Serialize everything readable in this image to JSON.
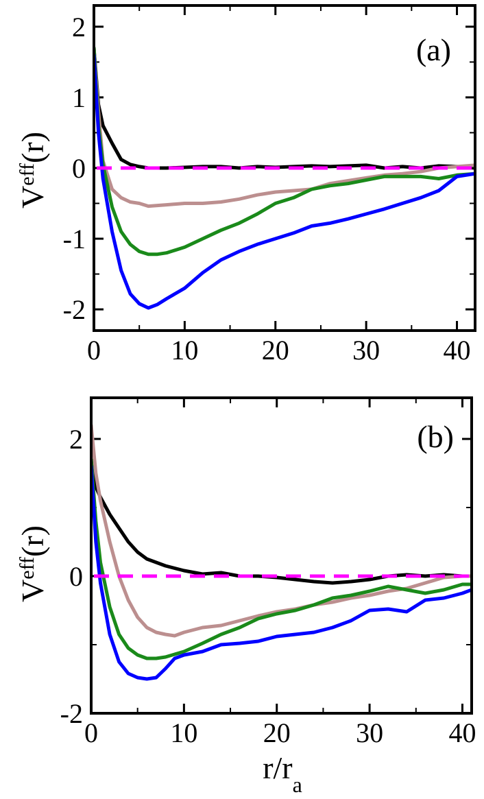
{
  "chart_data": [
    {
      "type": "line",
      "panel_label": "(a)",
      "ylabel_main": "V",
      "ylabel_sup": "eff",
      "ylabel_arg": "(r)",
      "xlim": [
        0,
        42
      ],
      "ylim": [
        -2.3,
        2.3
      ],
      "xticks": [
        0,
        10,
        20,
        30,
        40
      ],
      "xtick_labels": [
        "0",
        "10",
        "20",
        "30",
        "40"
      ],
      "yticks": [
        2,
        1,
        0,
        -1,
        -2
      ],
      "ytick_labels": [
        "2",
        "1",
        "0",
        "-1",
        "-2"
      ],
      "reference_line": {
        "y": 0,
        "color": "#ff00ff",
        "style": "dashed"
      },
      "series": [
        {
          "name": "black",
          "color": "#000000",
          "x": [
            0,
            0.5,
            1,
            2,
            3,
            4,
            5,
            6,
            8,
            10,
            12,
            14,
            16,
            18,
            20,
            22,
            24,
            26,
            28,
            30,
            32,
            34,
            36,
            38,
            40,
            42
          ],
          "y": [
            1.7,
            0.9,
            0.6,
            0.35,
            0.12,
            0.05,
            0.02,
            0.0,
            0.0,
            0.01,
            0.02,
            0.02,
            0.0,
            0.02,
            0.01,
            0.02,
            0.03,
            0.02,
            0.03,
            0.04,
            0.0,
            0.02,
            0.0,
            0.03,
            0.02,
            0.0
          ]
        },
        {
          "name": "rosybrown",
          "color": "#bc8f8f",
          "x": [
            0,
            0.5,
            1,
            2,
            3,
            4,
            5,
            6,
            7,
            8,
            10,
            12,
            14,
            16,
            18,
            20,
            22,
            24,
            26,
            28,
            30,
            32,
            34,
            36,
            38,
            40,
            42
          ],
          "y": [
            1.7,
            0.8,
            0.1,
            -0.3,
            -0.42,
            -0.48,
            -0.5,
            -0.54,
            -0.53,
            -0.52,
            -0.5,
            -0.5,
            -0.48,
            -0.44,
            -0.38,
            -0.34,
            -0.32,
            -0.3,
            -0.22,
            -0.18,
            -0.14,
            -0.1,
            -0.08,
            -0.05,
            0.0,
            0.02,
            0.04
          ]
        },
        {
          "name": "green",
          "color": "#1a8a1a",
          "x": [
            0,
            0.5,
            1,
            2,
            3,
            4,
            5,
            6,
            7,
            8,
            10,
            12,
            14,
            16,
            18,
            20,
            22,
            24,
            26,
            28,
            30,
            32,
            34,
            36,
            38,
            40,
            42
          ],
          "y": [
            1.7,
            0.6,
            0.05,
            -0.55,
            -0.9,
            -1.08,
            -1.18,
            -1.22,
            -1.22,
            -1.2,
            -1.12,
            -1.0,
            -0.88,
            -0.78,
            -0.65,
            -0.5,
            -0.42,
            -0.3,
            -0.25,
            -0.22,
            -0.17,
            -0.12,
            -0.12,
            -0.12,
            -0.15,
            -0.1,
            -0.08
          ]
        },
        {
          "name": "blue",
          "color": "#0000ff",
          "x": [
            0,
            0.5,
            1,
            2,
            3,
            4,
            5,
            6,
            7,
            8,
            10,
            12,
            14,
            16,
            18,
            20,
            22,
            24,
            26,
            28,
            30,
            32,
            34,
            36,
            38,
            40,
            42
          ],
          "y": [
            1.6,
            0.5,
            -0.15,
            -0.9,
            -1.45,
            -1.78,
            -1.92,
            -1.98,
            -1.93,
            -1.85,
            -1.7,
            -1.48,
            -1.3,
            -1.18,
            -1.08,
            -1.0,
            -0.92,
            -0.82,
            -0.78,
            -0.72,
            -0.65,
            -0.58,
            -0.5,
            -0.42,
            -0.32,
            -0.12,
            -0.08
          ]
        }
      ]
    },
    {
      "type": "line",
      "panel_label": "(b)",
      "ylabel_main": "V",
      "ylabel_sup": "eff",
      "ylabel_arg": "(r)",
      "xlabel_main": "r/r",
      "xlabel_sub": "a",
      "xlim": [
        0,
        41
      ],
      "ylim": [
        -2,
        2.6
      ],
      "xticks": [
        0,
        10,
        20,
        30,
        40
      ],
      "xtick_labels": [
        "0",
        "10",
        "20",
        "30",
        "40"
      ],
      "yticks": [
        2,
        0,
        -2
      ],
      "ytick_labels": [
        "2",
        "0",
        "-2"
      ],
      "reference_line": {
        "y": 0,
        "color": "#ff00ff",
        "style": "dashed"
      },
      "series": [
        {
          "name": "black",
          "color": "#000000",
          "x": [
            0,
            0.5,
            1,
            2,
            3,
            4,
            5,
            6,
            8,
            10,
            12,
            14,
            16,
            18,
            20,
            22,
            24,
            26,
            28,
            30,
            32,
            34,
            36,
            38,
            40,
            41
          ],
          "y": [
            1.7,
            1.3,
            1.15,
            0.9,
            0.7,
            0.5,
            0.35,
            0.25,
            0.15,
            0.08,
            0.03,
            0.05,
            0.0,
            0.0,
            -0.02,
            -0.05,
            -0.08,
            -0.1,
            -0.08,
            -0.05,
            0.0,
            0.02,
            0.0,
            0.02,
            0.0,
            0.0
          ]
        },
        {
          "name": "rosybrown",
          "color": "#bc8f8f",
          "x": [
            0,
            0.5,
            1,
            2,
            3,
            4,
            5,
            6,
            7,
            8,
            9,
            10,
            12,
            14,
            16,
            18,
            20,
            22,
            24,
            26,
            28,
            30,
            32,
            34,
            36,
            38,
            40,
            41
          ],
          "y": [
            2.2,
            1.5,
            1.1,
            0.5,
            0.0,
            -0.35,
            -0.6,
            -0.75,
            -0.82,
            -0.85,
            -0.87,
            -0.82,
            -0.75,
            -0.72,
            -0.65,
            -0.58,
            -0.52,
            -0.48,
            -0.42,
            -0.38,
            -0.32,
            -0.28,
            -0.22,
            -0.18,
            -0.1,
            -0.02,
            0.0,
            0.0
          ]
        },
        {
          "name": "green",
          "color": "#1a8a1a",
          "x": [
            0,
            0.5,
            1,
            2,
            3,
            4,
            5,
            6,
            7,
            8,
            10,
            12,
            14,
            16,
            18,
            20,
            22,
            24,
            26,
            28,
            30,
            32,
            34,
            36,
            38,
            40,
            41
          ],
          "y": [
            1.7,
            0.8,
            0.2,
            -0.45,
            -0.85,
            -1.05,
            -1.15,
            -1.2,
            -1.2,
            -1.18,
            -1.1,
            -0.98,
            -0.85,
            -0.75,
            -0.62,
            -0.55,
            -0.5,
            -0.42,
            -0.32,
            -0.28,
            -0.22,
            -0.15,
            -0.2,
            -0.25,
            -0.2,
            -0.12,
            -0.12
          ]
        },
        {
          "name": "blue",
          "color": "#0000ff",
          "x": [
            0,
            0.5,
            1,
            2,
            3,
            4,
            5,
            6,
            7,
            8,
            9,
            10,
            12,
            14,
            16,
            18,
            20,
            22,
            24,
            26,
            28,
            30,
            32,
            34,
            36,
            38,
            40,
            41
          ],
          "y": [
            1.6,
            0.5,
            -0.1,
            -0.85,
            -1.25,
            -1.42,
            -1.48,
            -1.5,
            -1.48,
            -1.35,
            -1.2,
            -1.15,
            -1.1,
            -1.0,
            -0.98,
            -0.95,
            -0.88,
            -0.85,
            -0.82,
            -0.75,
            -0.65,
            -0.5,
            -0.48,
            -0.52,
            -0.35,
            -0.32,
            -0.25,
            -0.2
          ]
        }
      ]
    }
  ]
}
